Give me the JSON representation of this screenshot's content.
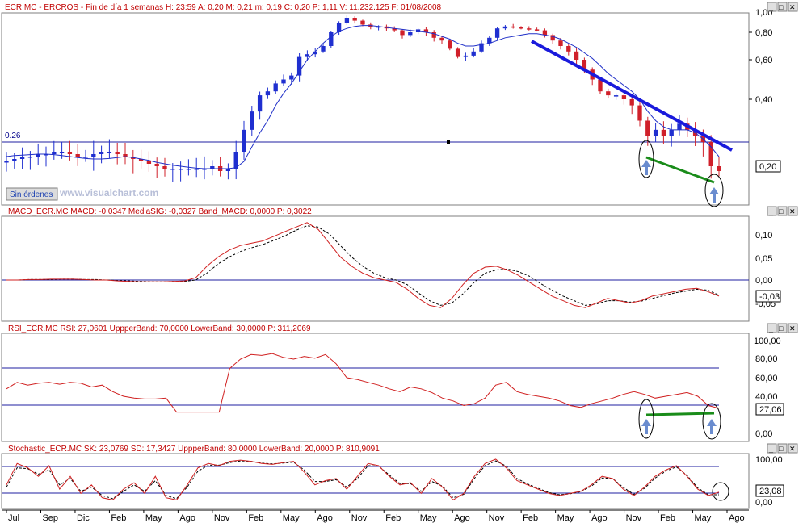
{
  "panels": [
    {
      "title": "ECR.MC - ERCROS - Fin de día 1 semanas H: 23:59  A: 0,20  M: 0,21  m: 0,19  C: 0,20  P: 1,11  V: 11.232.125  F: 01/08/2008",
      "button_label": "Sin órdenes",
      "watermark": "www.visualchart.com",
      "level_label": "0.26",
      "value_box": "0,20",
      "y_ticks": [
        "1,00",
        "0,80",
        "0,60",
        "0,40"
      ]
    },
    {
      "title": "MACD_ECR.MC  MACD: -0,0347  MediaSIG: -0,0327  Band_MACD: 0,0000  P: 0,3022",
      "value_box": "-0,03",
      "y_ticks": [
        "0,10",
        "0,05",
        "0,00",
        "-0,05"
      ]
    },
    {
      "title": "RSI_ECR.MC  RSI: 27,0601  UppperBand: 70,0000  LowerBand: 30,0000  P: 311,2069",
      "value_box": "27,06",
      "y_ticks": [
        "100,00",
        "80,00",
        "60,00",
        "40,00",
        "0,00"
      ]
    },
    {
      "title": "Stochastic_ECR.MC  SK: 23,0769  SD: 17,3427  UppperBand: 80,0000  LowerBand: 20,0000  P: 810,9091",
      "value_box": "23,08",
      "y_ticks": [
        "100,00",
        "0,00"
      ]
    }
  ],
  "x_axis_labels": [
    "Jul",
    "Sep",
    "Dic",
    "Feb",
    "May",
    "Ago",
    "Nov",
    "Feb",
    "May",
    "Ago",
    "Nov",
    "Feb",
    "May",
    "Ago",
    "Nov",
    "Feb",
    "May",
    "Ago",
    "Nov",
    "Feb",
    "May",
    "Ago"
  ],
  "window_buttons": [
    "_",
    "□",
    "✕"
  ],
  "colors": {
    "up_candle": "#1f2fd0",
    "down_candle": "#d0202a",
    "moving_average": "#2030c8",
    "trend_line": "#1a1adc",
    "divergence_line": "#1a8c1a",
    "band_line": "#2020a0",
    "indicator": "#d02020",
    "signal": "#000000",
    "highlight_ellipse": "#000000",
    "arrow": "#6a8ccf"
  },
  "chart_data": [
    {
      "type": "candlestick",
      "title": "ECR.MC - ERCROS - Fin de día 1 semanas",
      "ohlc_last": {
        "open": 0.2,
        "high": 0.21,
        "low": 0.19,
        "close": 0.2
      },
      "volume_last": "11.232.125",
      "date_last": "01/08/2008",
      "close_approx": [
        0.22,
        0.225,
        0.23,
        0.23,
        0.235,
        0.235,
        0.24,
        0.24,
        0.235,
        0.23,
        0.23,
        0.235,
        0.24,
        0.24,
        0.235,
        0.23,
        0.225,
        0.22,
        0.215,
        0.21,
        0.205,
        0.205,
        0.205,
        0.205,
        0.205,
        0.205,
        0.21,
        0.2,
        0.205,
        0.24,
        0.3,
        0.36,
        0.42,
        0.44,
        0.48,
        0.5,
        0.52,
        0.62,
        0.64,
        0.66,
        0.7,
        0.8,
        0.9,
        0.95,
        0.92,
        0.88,
        0.85,
        0.86,
        0.84,
        0.82,
        0.78,
        0.8,
        0.83,
        0.8,
        0.76,
        0.74,
        0.68,
        0.62,
        0.63,
        0.66,
        0.72,
        0.76,
        0.84,
        0.86,
        0.85,
        0.84,
        0.83,
        0.82,
        0.78,
        0.74,
        0.7,
        0.66,
        0.6,
        0.55,
        0.5,
        0.44,
        0.42,
        0.42,
        0.4,
        0.38,
        0.33,
        0.28,
        0.3,
        0.28,
        0.3,
        0.32,
        0.3,
        0.28,
        0.26,
        0.21,
        0.2
      ],
      "moving_average_approx": [
        0.23,
        0.232,
        0.233,
        0.234,
        0.235,
        0.235,
        0.234,
        0.232,
        0.23,
        0.228,
        0.226,
        0.225,
        0.225,
        0.226,
        0.228,
        0.23,
        0.228,
        0.225,
        0.222,
        0.218,
        0.215,
        0.212,
        0.21,
        0.208,
        0.206,
        0.205,
        0.205,
        0.205,
        0.205,
        0.207,
        0.22,
        0.25,
        0.29,
        0.33,
        0.38,
        0.43,
        0.48,
        0.54,
        0.6,
        0.66,
        0.72,
        0.77,
        0.81,
        0.84,
        0.86,
        0.87,
        0.87,
        0.86,
        0.85,
        0.84,
        0.83,
        0.82,
        0.81,
        0.8,
        0.79,
        0.77,
        0.75,
        0.72,
        0.7,
        0.7,
        0.71,
        0.72,
        0.74,
        0.76,
        0.77,
        0.78,
        0.79,
        0.79,
        0.78,
        0.77,
        0.75,
        0.72,
        0.69,
        0.65,
        0.61,
        0.57,
        0.53,
        0.5,
        0.47,
        0.44,
        0.4,
        0.36,
        0.33,
        0.31,
        0.3,
        0.3,
        0.3,
        0.29,
        0.27,
        0.25,
        0.23
      ],
      "reference_level": 0.26,
      "y_axis_ticks": [
        0.4,
        0.6,
        0.8,
        1.0
      ],
      "annotations": [
        "descending trend line (blue)",
        "lower-low divergence line (green)",
        "two highlighted lows with up arrows"
      ]
    },
    {
      "type": "line",
      "title": "MACD_ECR.MC",
      "series": [
        {
          "name": "MACD",
          "last": -0.0347,
          "values": [
            0,
            0,
            0.001,
            0.001,
            0.002,
            0.002,
            0.002,
            0.001,
            0,
            0,
            -0.002,
            -0.003,
            -0.004,
            -0.004,
            -0.004,
            -0.003,
            -0.002,
            0.005,
            0.03,
            0.05,
            0.065,
            0.075,
            0.08,
            0.085,
            0.095,
            0.105,
            0.115,
            0.125,
            0.11,
            0.08,
            0.05,
            0.03,
            0.015,
            0.005,
            0,
            -0.005,
            -0.02,
            -0.04,
            -0.055,
            -0.06,
            -0.04,
            -0.01,
            0.015,
            0.028,
            0.03,
            0.022,
            0.01,
            -0.005,
            -0.02,
            -0.035,
            -0.045,
            -0.055,
            -0.06,
            -0.05,
            -0.04,
            -0.045,
            -0.05,
            -0.045,
            -0.035,
            -0.03,
            -0.025,
            -0.02,
            -0.018,
            -0.025,
            -0.035
          ]
        },
        {
          "name": "MediaSIG",
          "last": -0.0327,
          "values": [
            0,
            0,
            0.001,
            0.001,
            0.001,
            0.002,
            0.002,
            0.001,
            0.001,
            0,
            -0.001,
            -0.002,
            -0.003,
            -0.004,
            -0.004,
            -0.003,
            -0.003,
            0,
            0.015,
            0.035,
            0.05,
            0.062,
            0.07,
            0.077,
            0.086,
            0.096,
            0.108,
            0.118,
            0.115,
            0.1,
            0.075,
            0.05,
            0.03,
            0.015,
            0.005,
            0,
            -0.01,
            -0.028,
            -0.045,
            -0.055,
            -0.05,
            -0.03,
            -0.005,
            0.015,
            0.022,
            0.024,
            0.018,
            0.008,
            -0.008,
            -0.022,
            -0.035,
            -0.045,
            -0.055,
            -0.052,
            -0.045,
            -0.045,
            -0.048,
            -0.046,
            -0.04,
            -0.034,
            -0.028,
            -0.024,
            -0.02,
            -0.022,
            -0.033
          ]
        }
      ],
      "band": 0.0,
      "y_axis_ticks": [
        -0.05,
        0.0,
        0.05,
        0.1
      ]
    },
    {
      "type": "line",
      "title": "RSI_ECR.MC",
      "series": [
        {
          "name": "RSI",
          "last": 27.0601,
          "values": [
            48,
            55,
            52,
            54,
            55,
            53,
            55,
            54,
            50,
            52,
            45,
            40,
            38,
            37,
            37,
            38,
            23,
            23,
            23,
            23,
            23,
            70,
            80,
            85,
            84,
            86,
            82,
            80,
            83,
            81,
            85,
            75,
            60,
            58,
            55,
            52,
            48,
            45,
            50,
            48,
            44,
            38,
            35,
            30,
            32,
            38,
            52,
            55,
            45,
            42,
            40,
            38,
            35,
            30,
            28,
            32,
            35,
            38,
            42,
            45,
            42,
            38,
            40,
            42,
            44,
            40,
            30,
            27
          ]
        }
      ],
      "upper_band": 70,
      "lower_band": 30,
      "y_axis_ticks": [
        0,
        40,
        60,
        80,
        100
      ],
      "annotations": [
        "flat divergence line between two RSI lows (green)"
      ]
    },
    {
      "type": "line",
      "title": "Stochastic_ECR.MC",
      "series": [
        {
          "name": "SK",
          "last": 23.0769,
          "values": [
            40,
            90,
            80,
            60,
            85,
            30,
            60,
            20,
            40,
            10,
            5,
            30,
            45,
            20,
            60,
            10,
            5,
            40,
            80,
            90,
            85,
            95,
            98,
            95,
            90,
            88,
            92,
            95,
            70,
            40,
            50,
            55,
            30,
            60,
            90,
            85,
            60,
            40,
            45,
            20,
            55,
            35,
            5,
            20,
            60,
            90,
            100,
            80,
            50,
            40,
            30,
            20,
            15,
            20,
            25,
            40,
            60,
            55,
            30,
            15,
            35,
            60,
            75,
            85,
            60,
            30,
            15,
            23
          ]
        },
        {
          "name": "SD",
          "last": 17.3427,
          "values": [
            35,
            80,
            78,
            65,
            75,
            40,
            55,
            25,
            35,
            15,
            8,
            25,
            40,
            25,
            50,
            15,
            8,
            35,
            72,
            86,
            86,
            92,
            96,
            95,
            91,
            89,
            91,
            93,
            75,
            48,
            48,
            52,
            35,
            55,
            85,
            84,
            63,
            43,
            43,
            25,
            48,
            37,
            10,
            18,
            55,
            85,
            96,
            84,
            55,
            42,
            32,
            22,
            17,
            19,
            24,
            37,
            56,
            55,
            34,
            18,
            32,
            56,
            72,
            82,
            62,
            33,
            17,
            17
          ]
        }
      ],
      "upper_band": 80,
      "lower_band": 20,
      "y_axis_ticks": [
        0,
        100
      ]
    }
  ]
}
